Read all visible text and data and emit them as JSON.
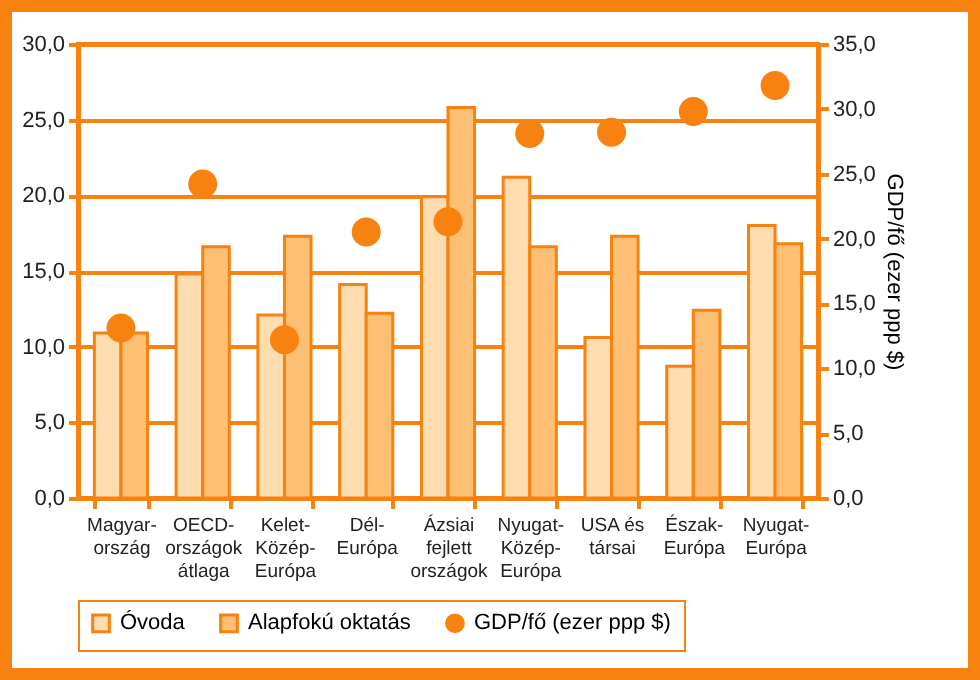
{
  "chart_data": {
    "type": "bar",
    "categories": [
      "Magyar-\nország",
      "OECD-\nországok\nátlaga",
      "Kelet-\nKözép-\nEurópa",
      "Dél-\nEurópa",
      "Ázsiai\nfejlett\nországok",
      "Nyugat-\nKözép-\nEurópa",
      "USA és\ntársai",
      "Észak-\nEurópa",
      "Nyugat-\nEurópa"
    ],
    "series": [
      {
        "name": "Óvoda",
        "color": "#fddcb0",
        "values": [
          10.9,
          14.8,
          12.1,
          14.1,
          19.9,
          21.2,
          10.6,
          8.7,
          18.0
        ]
      },
      {
        "name": "Alapfokú oktatás",
        "color": "#fdbf74",
        "values": [
          10.9,
          16.6,
          17.3,
          12.2,
          25.8,
          16.6,
          17.3,
          12.4,
          16.8
        ]
      },
      {
        "name": "GDP/fő (ezer ppp $)",
        "type": "scatter",
        "axis": "y2",
        "color": "#f7820f",
        "marker": "circle",
        "values": [
          13.1,
          24.2,
          12.2,
          20.5,
          21.3,
          28.1,
          28.2,
          29.8,
          31.8
        ]
      }
    ],
    "y2label": "GDP/fő (ezer ppp $)",
    "ylim": [
      0,
      30
    ],
    "yticks": [
      {
        "value": 0,
        "label": "0,0"
      },
      {
        "value": 5,
        "label": "5,0"
      },
      {
        "value": 10,
        "label": "10,0"
      },
      {
        "value": 15,
        "label": "15,0"
      },
      {
        "value": 20,
        "label": "20,0"
      },
      {
        "value": 25,
        "label": "25,0"
      },
      {
        "value": 30,
        "label": "30,0"
      }
    ],
    "y2lim": [
      0,
      35
    ],
    "y2ticks": [
      {
        "value": 0,
        "label": "0,0"
      },
      {
        "value": 5,
        "label": "5,0"
      },
      {
        "value": 10,
        "label": "10,0"
      },
      {
        "value": 15,
        "label": "15,0"
      },
      {
        "value": 20,
        "label": "20,0"
      },
      {
        "value": 25,
        "label": "25,0"
      },
      {
        "value": 30,
        "label": "30,0"
      },
      {
        "value": 35,
        "label": "35,0"
      }
    ],
    "grid": "y",
    "legend": "bottom"
  }
}
